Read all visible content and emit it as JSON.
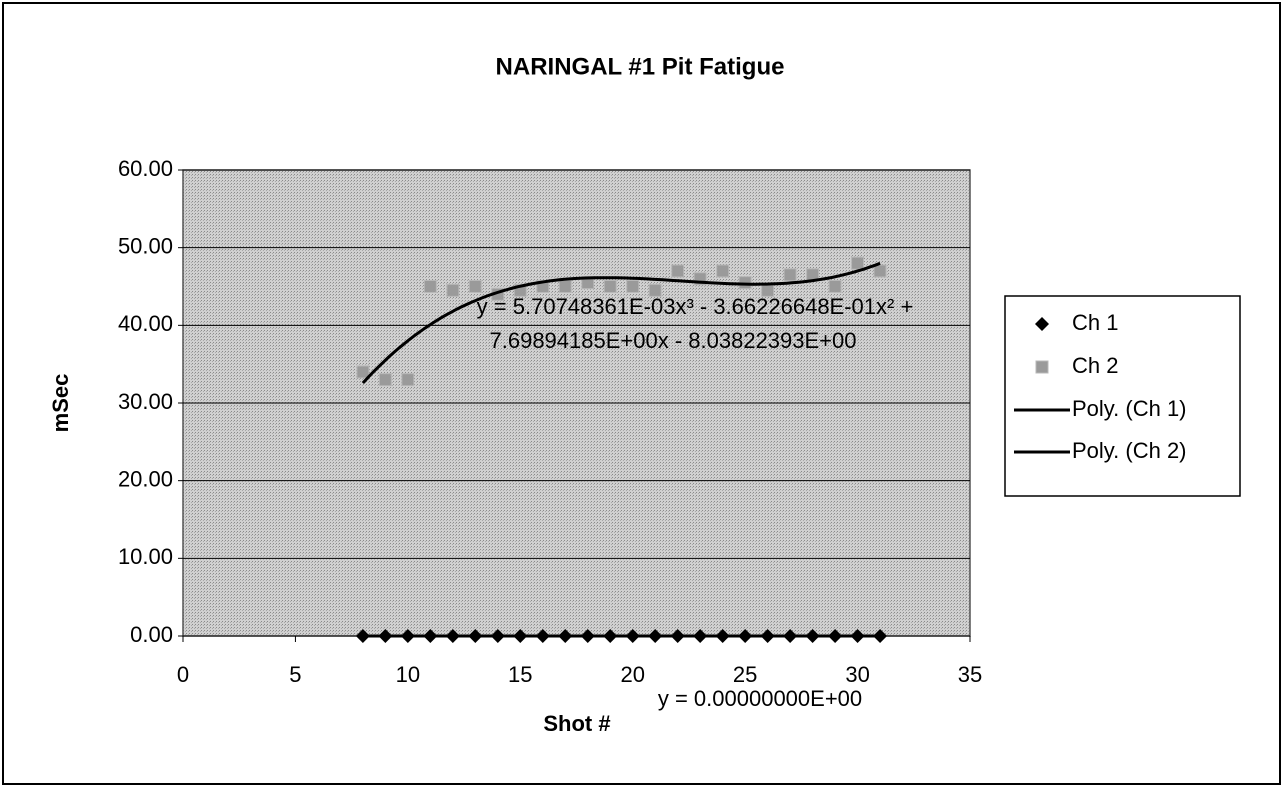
{
  "chart_data": {
    "type": "scatter",
    "title": "NARINGAL #1 Pit Fatigue",
    "x_label": "Shot #",
    "y_label": "mSec",
    "x": [
      8,
      9,
      10,
      11,
      12,
      13,
      14,
      15,
      16,
      17,
      18,
      19,
      20,
      21,
      22,
      23,
      24,
      25,
      26,
      27,
      28,
      29,
      30,
      31
    ],
    "series": [
      {
        "name": "Ch 1",
        "color": "#000000",
        "marker": "diamond",
        "values": [
          0,
          0,
          0,
          0,
          0,
          0,
          0,
          0,
          0,
          0,
          0,
          0,
          0,
          0,
          0,
          0,
          0,
          0,
          0,
          0,
          0,
          0,
          0,
          0
        ],
        "trendline": {
          "name": "Poly. (Ch 1)",
          "order": 3,
          "color": "#000000",
          "equation": [
            "y = 0.00000000E+00"
          ]
        }
      },
      {
        "name": "Ch 2",
        "color": "#9a9a9a",
        "marker": "square",
        "values": [
          34,
          33,
          33,
          45,
          44.5,
          45,
          44,
          44.5,
          45,
          45,
          45.5,
          45,
          45,
          44.5,
          47,
          46,
          47,
          45.5,
          44.5,
          46.5,
          46.5,
          45,
          48,
          47
        ],
        "trendline": {
          "name": "Poly. (Ch 2)",
          "order": 3,
          "color": "#000000",
          "equation": [
            "y = 5.70748361E-03x³ - 3.66226648E-01x² +",
            "7.69894185E+00x - 8.03822393E+00"
          ]
        }
      }
    ],
    "xlim": [
      0,
      35
    ],
    "xticks": [
      0,
      5,
      10,
      15,
      20,
      25,
      30,
      35
    ],
    "ylim": [
      0,
      60
    ],
    "yticks": [
      {
        "value": 0,
        "label": "0.00"
      },
      {
        "value": 10,
        "label": "10.00"
      },
      {
        "value": 20,
        "label": "20.00"
      },
      {
        "value": 30,
        "label": "30.00"
      },
      {
        "value": 40,
        "label": "40.00"
      },
      {
        "value": 50,
        "label": "50.00"
      },
      {
        "value": 60,
        "label": "60.00"
      }
    ],
    "grid": true,
    "legend": "right"
  }
}
